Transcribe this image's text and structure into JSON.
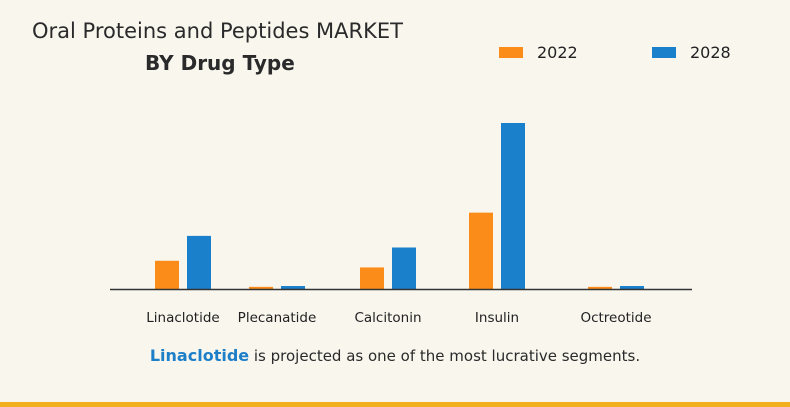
{
  "header": {
    "title": "Oral Proteins and Peptides MARKET",
    "subtitle": "BY Drug Type"
  },
  "caption": {
    "highlight": "Linaclotide",
    "text": " is projected as one of the most lucrative segments."
  },
  "colors": {
    "s2022": "#fb8c19",
    "s2028": "#1a80cc",
    "highlight": "#1d7fc8",
    "bottom_bar": "#f2b01e"
  },
  "chart_data": {
    "type": "bar",
    "title": "Oral Proteins and Peptides MARKET",
    "subtitle": "BY Drug Type",
    "categories": [
      "Linaclotide",
      "Plecanatide",
      "Calcitonin",
      "Insulin",
      "Octreotide"
    ],
    "series": [
      {
        "name": "2022",
        "values": [
          17,
          1.3,
          13,
          46,
          1.3
        ]
      },
      {
        "name": "2028",
        "values": [
          32,
          1.8,
          25,
          100,
          1.8
        ]
      }
    ],
    "ylim": [
      0,
      100
    ],
    "legend_position": "top-right",
    "grid": false
  }
}
